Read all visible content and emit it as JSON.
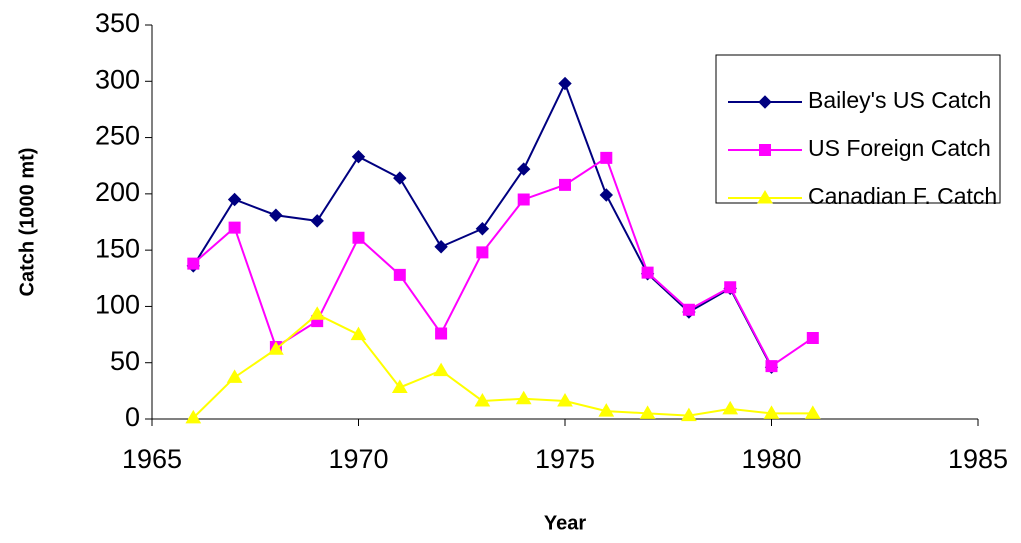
{
  "chart_data": {
    "type": "line",
    "x_label": "Year",
    "y_label": "Catch (1000 mt)",
    "x": [
      1966,
      1967,
      1968,
      1969,
      1970,
      1971,
      1972,
      1973,
      1974,
      1975,
      1976,
      1977,
      1978,
      1979,
      1980,
      1981
    ],
    "series": [
      {
        "name": "Bailey's US Catch",
        "color": "#000080",
        "marker": "diamond",
        "values": [
          136,
          195,
          181,
          176,
          233,
          214,
          153,
          169,
          222,
          298,
          199,
          129,
          95,
          116,
          46,
          null
        ]
      },
      {
        "name": "US Foreign Catch",
        "color": "#ff00ff",
        "marker": "square",
        "values": [
          138,
          170,
          64,
          87,
          161,
          128,
          76,
          148,
          195,
          208,
          232,
          130,
          97,
          117,
          47,
          72
        ]
      },
      {
        "name": "Canadian F. Catch",
        "color": "#ffff00",
        "marker": "triangle",
        "values": [
          1,
          37,
          62,
          93,
          75,
          28,
          43,
          16,
          18,
          16,
          7,
          5,
          3,
          9,
          5,
          5
        ]
      }
    ],
    "xlim": [
      1965,
      1985
    ],
    "xticks": [
      1965,
      1970,
      1975,
      1980,
      1985
    ],
    "ylim": [
      0,
      350
    ],
    "yticks": [
      0,
      50,
      100,
      150,
      200,
      250,
      300,
      350
    ],
    "grid": false,
    "legend": "upper right"
  }
}
